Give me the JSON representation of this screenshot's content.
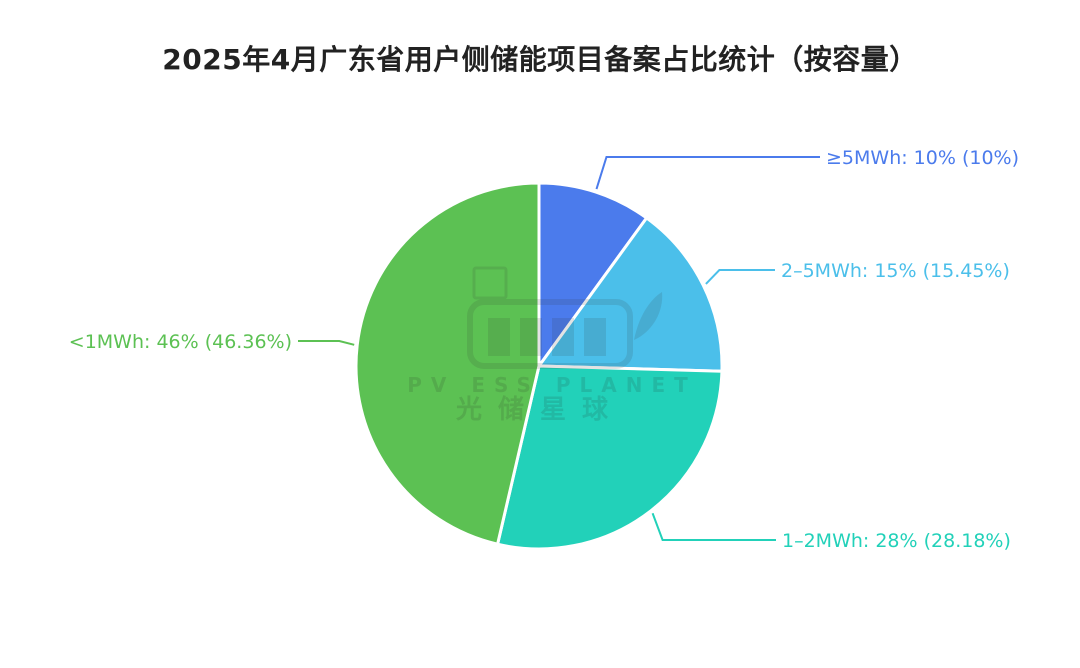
{
  "chart_data": {
    "type": "pie",
    "title": "2025年4月广东省用户侧储能项目备案占比统计（按容量）",
    "slices": [
      {
        "name": "≥5MWh",
        "value": 10,
        "label": "≥5MWh: 10% (10%)",
        "color": "#4B7BEC"
      },
      {
        "name": "2–5MWh",
        "value": 15.45,
        "label": "2–5MWh: 15% (15.45%)",
        "color": "#4BBFEA"
      },
      {
        "name": "1–2MWh",
        "value": 28.18,
        "label": "1–2MWh: 28% (28.18%)",
        "color": "#22D1B9"
      },
      {
        "name": "<1MWh",
        "value": 46.36,
        "label": "<1MWh: 46% (46.36%)",
        "color": "#5CC153"
      }
    ]
  },
  "watermark": {
    "text_en": "PV ESS PLANET",
    "text_cn": "光储星球"
  }
}
